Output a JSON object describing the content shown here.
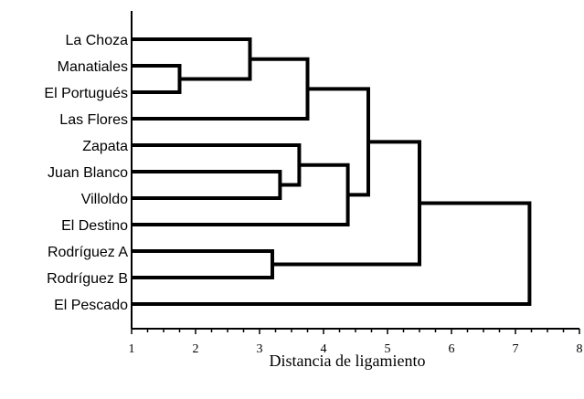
{
  "chart_data": {
    "type": "dendrogram",
    "xlabel": "Distancia de ligamiento",
    "xlim": [
      1,
      8
    ],
    "x_ticks": [
      "1",
      "2",
      "3",
      "4",
      "5",
      "6",
      "7",
      "8"
    ],
    "leaves": [
      "La Choza",
      "Manatiales",
      "El Portugués",
      "Las Flores",
      "Zapata",
      "Juan Blanco",
      "Villoldo",
      "El Destino",
      "Rodríguez A",
      "Rodríguez B",
      "El Pescado"
    ],
    "merges": [
      {
        "id": "c1",
        "left": "Manatiales",
        "right": "El Portugués",
        "distance": 1.75
      },
      {
        "id": "c2",
        "left": "La Choza",
        "right": "c1",
        "distance": 2.85
      },
      {
        "id": "c3",
        "left": "c2",
        "right": "Las Flores",
        "distance": 3.75
      },
      {
        "id": "c4",
        "left": "Juan Blanco",
        "right": "Villoldo",
        "distance": 3.32
      },
      {
        "id": "c5",
        "left": "Zapata",
        "right": "c4",
        "distance": 3.62
      },
      {
        "id": "c6",
        "left": "c5",
        "right": "El Destino",
        "distance": 4.38
      },
      {
        "id": "c7",
        "left": "c3",
        "right": "c6",
        "distance": 4.7
      },
      {
        "id": "c8",
        "left": "Rodríguez A",
        "right": "Rodríguez B",
        "distance": 3.2
      },
      {
        "id": "c9",
        "left": "c7",
        "right": "c8",
        "distance": 5.5
      },
      {
        "id": "c10",
        "left": "c9",
        "right": "El Pescado",
        "distance": 7.22
      }
    ]
  }
}
